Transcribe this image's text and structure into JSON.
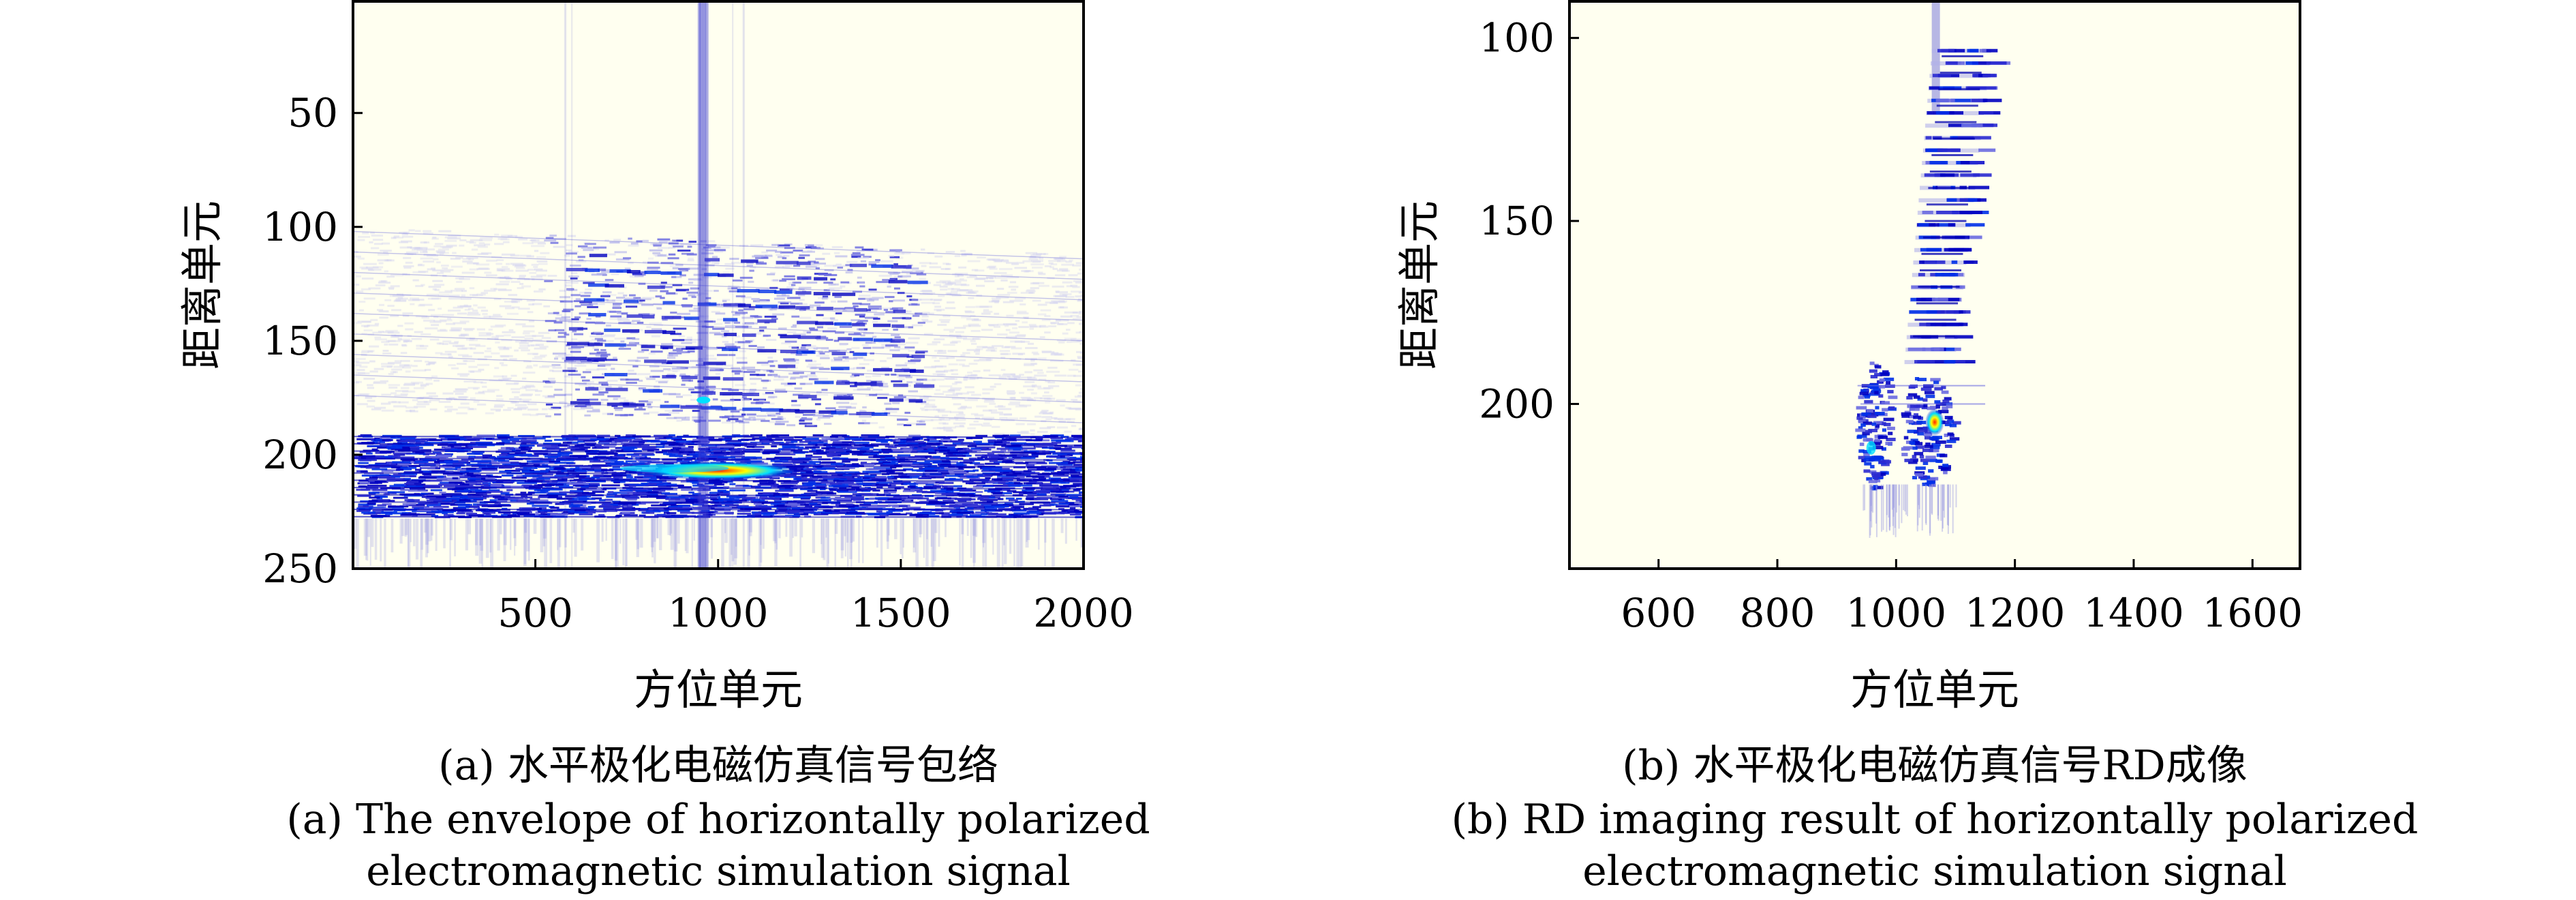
{
  "chart_data": [
    {
      "type": "heatmap",
      "xlabel": "方位单元",
      "ylabel": "距离单元",
      "xlim": [
        1,
        2000
      ],
      "ylim": [
        250,
        1
      ],
      "xticks": [
        500,
        1000,
        1500,
        2000
      ],
      "yticks": [
        50,
        100,
        150,
        200,
        250
      ],
      "caption_cn": "(a) 水平极化电磁仿真信号包络",
      "caption_en_1": "(a) The envelope of horizontally polarized",
      "caption_en_2": "electromagnetic simulation signal",
      "background_color": "#fffff0",
      "colormap": [
        "#fffff0",
        "#c8c8ee",
        "#6a6ae0",
        "#0000c8",
        "#0050ff",
        "#00e0ff",
        "#ffff00",
        "#ff2000"
      ],
      "regions": [
        {
          "x": [
            1,
            2000
          ],
          "y": [
            100,
            180
          ],
          "level": 0.25
        },
        {
          "x": [
            500,
            1550
          ],
          "y": [
            105,
            175
          ],
          "level": 0.45
        },
        {
          "x": [
            1,
            2000
          ],
          "y": [
            190,
            228
          ],
          "level": 0.8
        },
        {
          "x": [
            940,
            980
          ],
          "y": [
            1,
            250
          ],
          "level": 0.6
        }
      ],
      "peak": {
        "x": 1000,
        "y": 207
      }
    },
    {
      "type": "heatmap",
      "xlabel": "方位单元",
      "ylabel": "距离单元",
      "xlim": [
        450,
        1680
      ],
      "ylim": [
        245,
        90
      ],
      "xticks": [
        600,
        800,
        1000,
        1200,
        1400,
        1600
      ],
      "yticks": [
        100,
        150,
        200
      ],
      "caption_cn": "(b) 水平极化电磁仿真信号RD成像",
      "caption_en_1": "(b) RD imaging result of horizontally polarized",
      "caption_en_2": "electromagnetic simulation signal",
      "background_color": "#fffff0",
      "target": {
        "upper_x_range": [
          1040,
          1160
        ],
        "upper_y_range": [
          103,
          190
        ],
        "lower_x_range": [
          940,
          1100
        ],
        "lower_y_range": [
          190,
          225
        ]
      },
      "peak": {
        "x": 1065,
        "y": 205
      }
    }
  ]
}
